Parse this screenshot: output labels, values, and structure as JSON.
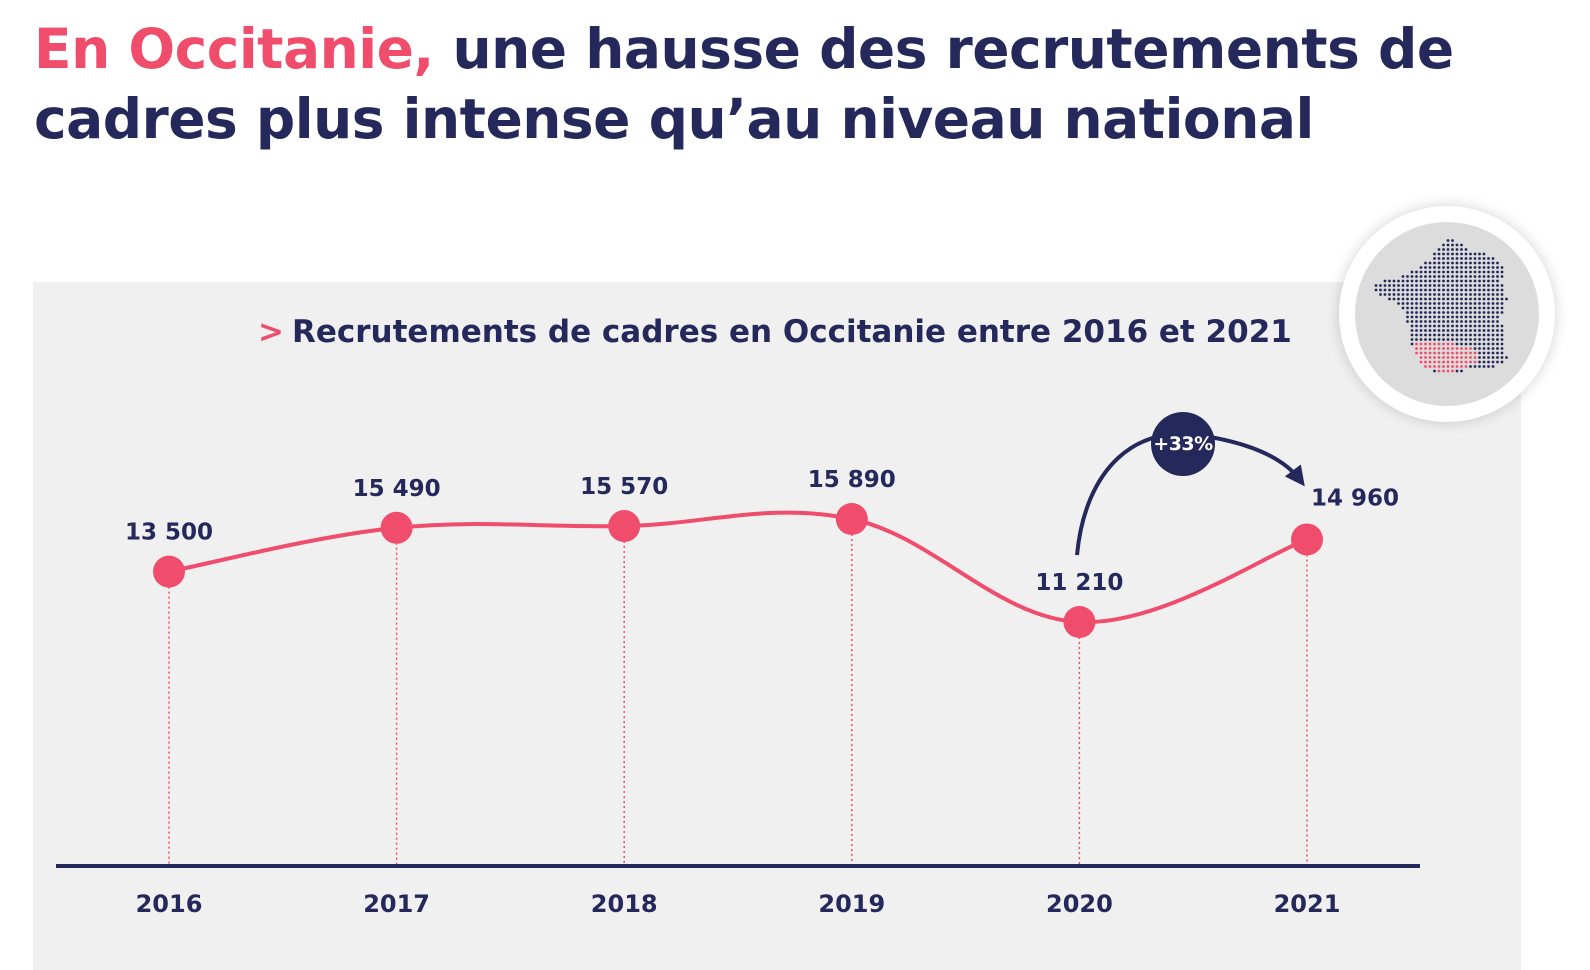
{
  "headline": {
    "accent": "En Occitanie,",
    "rest": "une hausse des recrutements de cadres plus intense qu’au niveau national"
  },
  "colors": {
    "accent": "#f04d6d",
    "navy": "#25285a",
    "panel": "#f0f0f0"
  },
  "icons": {
    "title_marker": "chevron-right-icon",
    "map": "france-map-icon",
    "arrow": "curved-arrow-icon"
  },
  "chart_data": {
    "type": "line",
    "title_marker": ">",
    "title": "Recrutements de cadres en Occitanie entre 2016 et 2021",
    "categories": [
      "2016",
      "2017",
      "2018",
      "2019",
      "2020",
      "2021"
    ],
    "values": [
      13500,
      15490,
      15570,
      15890,
      11210,
      14960
    ],
    "value_labels": [
      "13 500",
      "15 490",
      "15 570",
      "15 890",
      "11 210",
      "14 960"
    ],
    "xlabel": "",
    "ylabel": "",
    "grid": false,
    "smooth": true,
    "annotation": {
      "label": "+33%",
      "from": "2020",
      "to": "2021"
    }
  }
}
